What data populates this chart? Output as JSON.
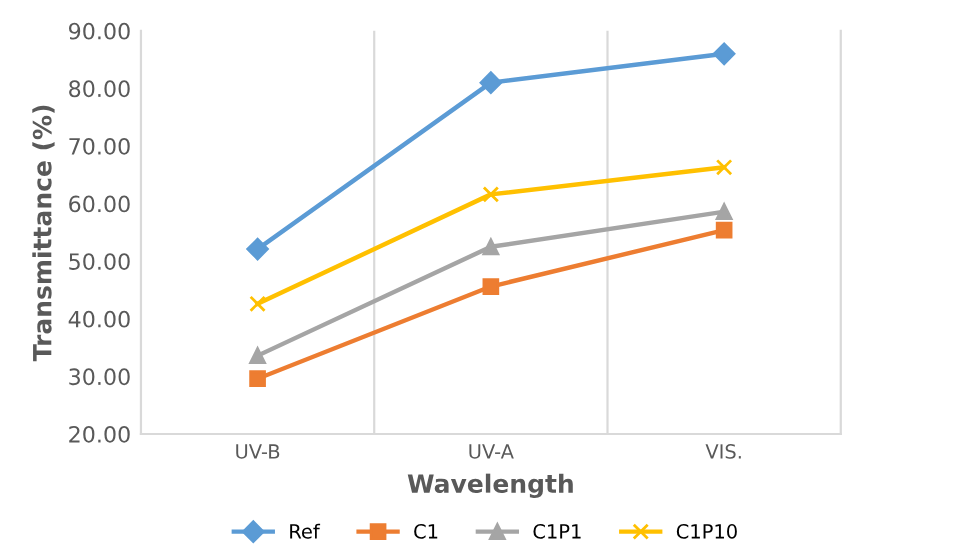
{
  "chart_data": {
    "type": "line",
    "xlabel": "Wavelength",
    "ylabel": "Transmittance (%)",
    "categories": [
      "UV-B",
      "UV-A",
      "VIS."
    ],
    "series": [
      {
        "name": "Ref",
        "color": "#5b9bd5",
        "marker": "diamond",
        "values": [
          52.1,
          81.0,
          86.0
        ]
      },
      {
        "name": "C1",
        "color": "#ed7d31",
        "marker": "square",
        "values": [
          29.6,
          45.6,
          55.4
        ]
      },
      {
        "name": "C1P1",
        "color": "#a5a5a5",
        "marker": "triangle",
        "values": [
          33.6,
          52.5,
          58.6
        ]
      },
      {
        "name": "C1P10",
        "color": "#ffc000",
        "marker": "cross",
        "values": [
          42.6,
          61.6,
          66.3
        ]
      }
    ],
    "ylim": [
      20,
      90
    ],
    "yticks": [
      {
        "value": 20,
        "label": "20.00"
      },
      {
        "value": 30,
        "label": "30.00"
      },
      {
        "value": 40,
        "label": "40.00"
      },
      {
        "value": 50,
        "label": "50.00"
      },
      {
        "value": 60,
        "label": "60.00"
      },
      {
        "value": 70,
        "label": "70.00"
      },
      {
        "value": 80,
        "label": "80.00"
      },
      {
        "value": 90,
        "label": "90.00"
      }
    ],
    "grid": "x",
    "legend": "bottom"
  }
}
